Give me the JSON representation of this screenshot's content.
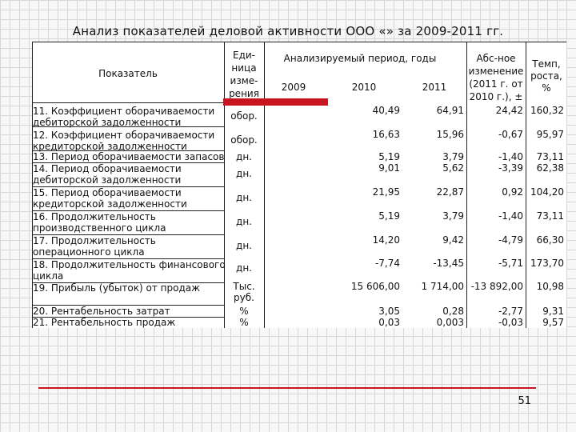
{
  "title": "Анализ показателей деловой активности ООО «» за 2009-2011 гг.",
  "header": {
    "indicator": "Показатель",
    "unit": "Еди-\nница\nизме-\nрения",
    "period": "Анализируемый период, годы",
    "years": [
      "2009",
      "2010",
      "2011"
    ],
    "abs_change": "Абс-ное\nизменение\n(2011 г. от\n2010 г.), ±",
    "growth": "Темп,\nроста,\n%"
  },
  "rows": [
    {
      "name": "11. Коэффициент оборачиваемости\nдебиторской задолженности",
      "unit": "обор.",
      "y2009": "",
      "y2010": "40,49",
      "y2011": "64,91",
      "abs": "24,42",
      "growth": "160,32"
    },
    {
      "name": "12. Коэффициент оборачиваемости\nкредиторской задолженности",
      "unit": "обор.",
      "y2009": "",
      "y2010": "16,63",
      "y2011": "15,96",
      "abs": "-0,67",
      "growth": "95,97"
    },
    {
      "name": "13. Период оборачиваемости запасов",
      "unit": "дн.",
      "y2009": "",
      "y2010": "5,19",
      "y2011": "3,79",
      "abs": "-1,40",
      "growth": "73,11"
    },
    {
      "name": "14. Период оборачиваемости\nдебиторской задолженности",
      "unit": "дн.",
      "y2009": "",
      "y2010": "9,01",
      "y2011": "5,62",
      "abs": "-3,39",
      "growth": "62,38"
    },
    {
      "name": "15. Период оборачиваемости\nкредиторской задолженности",
      "unit": "дн.",
      "y2009": "",
      "y2010": "21,95",
      "y2011": "22,87",
      "abs": "0,92",
      "growth": "104,20"
    },
    {
      "name": "16. Продолжительность\nпроизводственного цикла",
      "unit": "дн.",
      "y2009": "",
      "y2010": "5,19",
      "y2011": "3,79",
      "abs": "-1,40",
      "growth": "73,11"
    },
    {
      "name": "17. Продолжительность\nоперационного цикла",
      "unit": "дн.",
      "y2009": "",
      "y2010": "14,20",
      "y2011": "9,42",
      "abs": "-4,79",
      "growth": "66,30"
    },
    {
      "name": "18. Продолжительность финансового\nцикла",
      "unit": "дн.",
      "y2009": "",
      "y2010": "-7,74",
      "y2011": "-13,45",
      "abs": "-5,71",
      "growth": "173,70"
    },
    {
      "name": "19. Прибыль (убыток) от продаж",
      "unit": "Тыс.\nруб.",
      "y2009": "",
      "y2010": "15 606,00",
      "y2011": "1 714,00",
      "abs": "-13 892,00",
      "growth": "10,98"
    },
    {
      "name": "20. Рентабельность затрат",
      "unit": "%",
      "y2009": "",
      "y2010": "3,05",
      "y2011": "0,28",
      "abs": "-2,77",
      "growth": "9,31"
    },
    {
      "name": "21. Рентабельность продаж",
      "unit": "%",
      "y2009": "",
      "y2010": "0,03",
      "y2011": "0,003",
      "abs": "-0,03",
      "growth": "9,57"
    }
  ],
  "page_number": "51",
  "colors": {
    "accent": "#c8141e",
    "grid": "#d6d6d6"
  }
}
